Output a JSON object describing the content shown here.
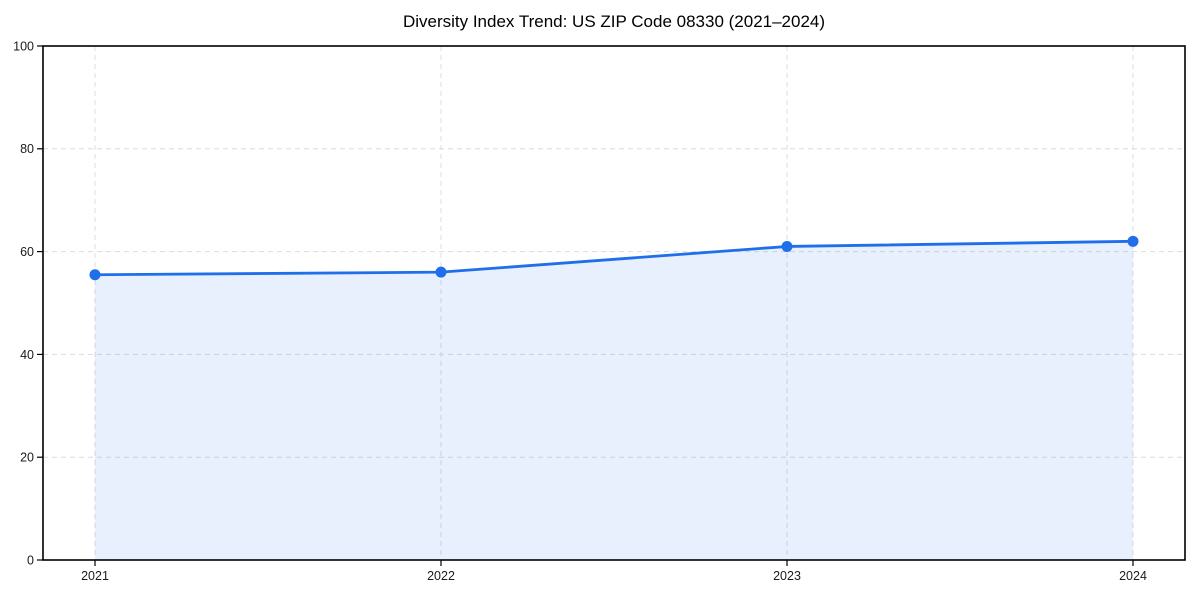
{
  "chart_data": {
    "type": "line",
    "title": "Diversity Index Trend: US ZIP Code 08330 (2021–2024)",
    "categories": [
      "2021",
      "2022",
      "2023",
      "2024"
    ],
    "series": [
      {
        "name": "Diversity Index",
        "values": [
          55.5,
          56,
          61,
          62
        ]
      }
    ],
    "xlabel": "",
    "ylabel": "",
    "ylim": [
      0,
      100
    ],
    "yticks": [
      0,
      20,
      40,
      60,
      80,
      100
    ],
    "grid": true,
    "grid_style": "dashed",
    "legend_position": "none",
    "marker": "circle",
    "area_fill": true,
    "colors": {
      "line": "#1f6feb",
      "marker": "#1f6feb",
      "fill": "#1f6feb",
      "fill_opacity": 0.1,
      "grid": "#dcdcdc",
      "axis": "#000000",
      "tick_label": "#1a1a1a",
      "title": "#000000",
      "background": "#ffffff"
    }
  }
}
